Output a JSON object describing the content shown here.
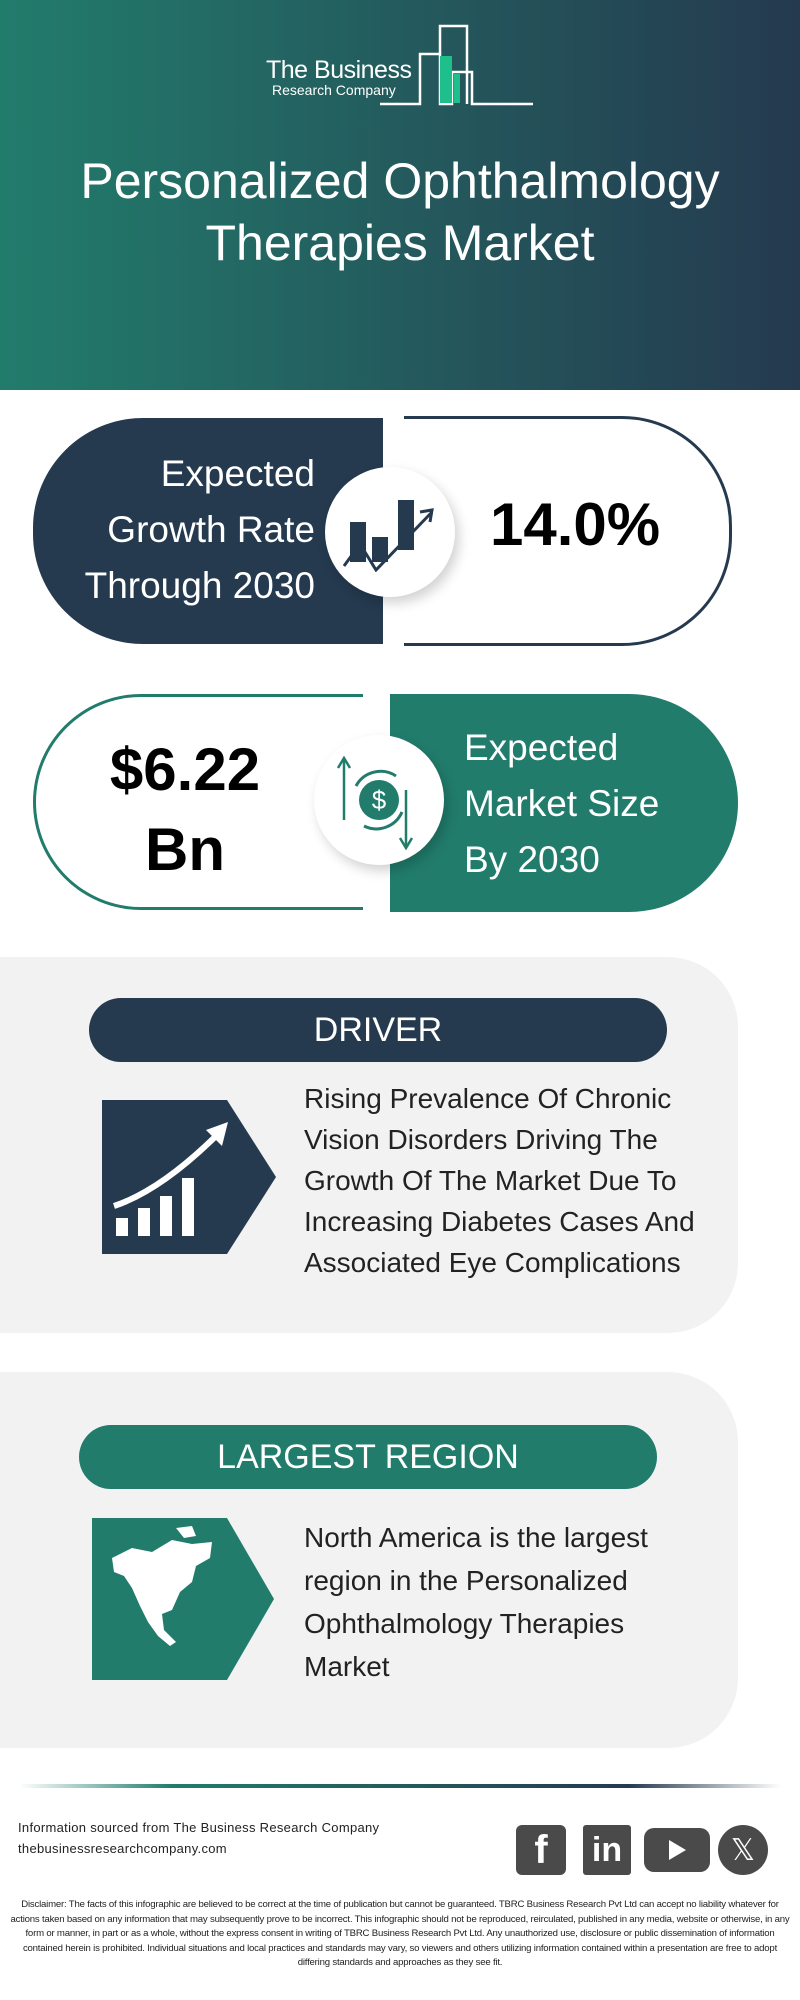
{
  "brand": {
    "line1": "The Business",
    "line2": "Research Company"
  },
  "title": "Personalized Ophthalmology Therapies Market",
  "title_lines": [
    "Personalized Ophthalmology",
    "Therapies Market"
  ],
  "growth": {
    "label_lines": [
      "Expected",
      "Growth Rate",
      "Through 2030"
    ],
    "value": "14.0%",
    "icon": "growth-chart-icon"
  },
  "market": {
    "value_lines": [
      "$6.22",
      "Bn"
    ],
    "label_lines": [
      "Expected",
      "Market Size",
      "By 2030"
    ],
    "icon": "dollar-cycle-icon"
  },
  "driver": {
    "heading": "DRIVER",
    "text": "Rising Prevalence Of Chronic Vision Disorders Driving The Growth Of The Market Due To Increasing Diabetes Cases And Associated Eye Complications",
    "icon": "rising-bars-icon"
  },
  "region": {
    "heading": "LARGEST REGION",
    "text": "North America is the largest region in the Personalized Ophthalmology Therapies Market",
    "icon": "north-america-map-icon"
  },
  "footer": {
    "source": "Information sourced from The Business Research Company",
    "website": "thebusinessresearchcompany.com",
    "social": [
      "facebook",
      "linkedin",
      "youtube",
      "x"
    ]
  },
  "disclaimer": "Disclaimer: The facts of this infographic are believed to be correct at the time of publication but cannot be guaranteed. TBRC Business Research Pvt Ltd can accept no liability whatever for actions taken based on any information that may subsequently prove to be incorrect. This infographic should not be reproduced, reirculated, published in any media, website or otherwise, in any form or manner, in part or as a whole, without the express consent in writing of TBRC Business Research Pvt Ltd. Any unauthorized use, disclosure or public dissemination of information contained herein is prohibited. Individual situations and local practices and standards may vary, so viewers and others utilizing information contained within a presentation are free to adopt differing standards and approaches as they see fit.",
  "colors": {
    "navy": "#253a4f",
    "teal": "#217c6c",
    "panel": "#f2f2f2"
  }
}
